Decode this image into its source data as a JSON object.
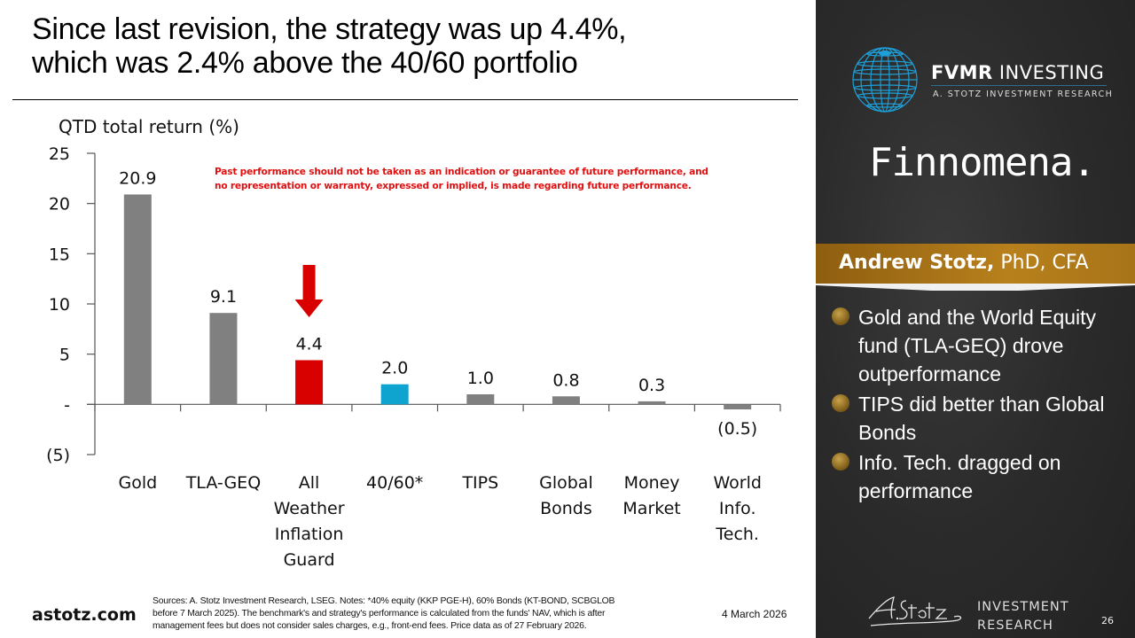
{
  "slide": {
    "title_line1": "Since last revision, the strategy was up 4.4%,",
    "title_line2": "which was 2.4% above the 40/60 portfolio",
    "disclaimer_line1": "Past performance should not be taken as an indication or guarantee of future performance, and",
    "disclaimer_line2": "no representation or warranty, expressed or implied, is made regarding future performance.",
    "footer": {
      "site": "astotz.com",
      "notes_line1": "Sources: A. Stotz Investment Research, LSEG. Notes: *40% equity (KKP PGE-H), 60% Bonds (KT-BOND, SCBGLOB",
      "notes_line2": "before 7 March 2025). The benchmark's and strategy's performance is calculated from the funds' NAV, which is after",
      "notes_line3": "management fees but does not consider sales charges, e.g., front-end fees. Price data as of 27 February 2026.",
      "date": "4 March 2026"
    }
  },
  "chart_data": {
    "type": "bar",
    "title": "",
    "ylabel": "QTD total return (%)",
    "xlabel": "",
    "ylim": [
      -5,
      25
    ],
    "yticks": [
      25,
      20,
      15,
      10,
      5,
      0,
      -5
    ],
    "ytick_labels": [
      "25",
      "20",
      "15",
      "10",
      "5",
      "-",
      "(5)"
    ],
    "grid": false,
    "categories": [
      [
        "Gold"
      ],
      [
        "TLA-GEQ"
      ],
      [
        "All",
        "Weather",
        "Inflation",
        "Guard"
      ],
      [
        "40/60*"
      ],
      [
        "TIPS"
      ],
      [
        "Global",
        "Bonds"
      ],
      [
        "Money",
        "Market"
      ],
      [
        "World",
        "Info.",
        "Tech."
      ]
    ],
    "values": [
      20.9,
      9.1,
      4.4,
      2.0,
      1.0,
      0.8,
      0.3,
      -0.5
    ],
    "value_labels": [
      "20.9",
      "9.1",
      "4.4",
      "2.0",
      "1.0",
      "0.8",
      "0.3",
      "(0.5)"
    ],
    "colors": [
      "#808080",
      "#808080",
      "#d90000",
      "#0fa3cf",
      "#808080",
      "#808080",
      "#808080",
      "#808080"
    ],
    "annotations": [
      {
        "type": "down-arrow",
        "category_index": 2,
        "color": "#d90000"
      }
    ]
  },
  "sidebar": {
    "brand_bold": "FVMR",
    "brand_rest": " INVESTING",
    "brand_sub": "A. STOTZ INVESTMENT RESEARCH",
    "partner": "Finnomena.",
    "presenter_name": "Andrew Stotz,",
    "presenter_credentials": " PhD, CFA",
    "bullets": [
      "Gold and the World Equity fund (TLA-GEQ) drove outperformance",
      "TIPS did better than Global Bonds",
      "Info. Tech. dragged on performance"
    ],
    "signature": "A. Stotz",
    "inv_line1": "INVESTMENT",
    "inv_line2": "RESEARCH",
    "page_number": "26",
    "accent_color": "#b07a18"
  }
}
